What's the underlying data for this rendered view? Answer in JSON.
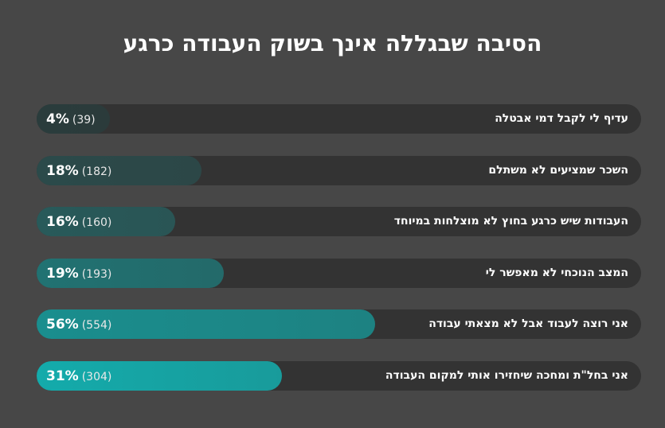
{
  "chart_data": {
    "type": "bar",
    "orientation": "horizontal",
    "title": "הסיבה שבגללה אינך בשוק העבודה כרגע",
    "categories": [
      "עדיף לי לקבל דמי אבטלה",
      "השכר שמציעים לא משתלם",
      "העבודות שיש כרגע בחוץ לא מוצלחות במיוחד",
      "המצב הנוכחי לא מאפשר לי",
      "אני רוצה לעבוד אבל לא מצאתי עבודה",
      "אני בחל\"ת ומחכה שיחזירו אותי למקום העבודה"
    ],
    "values": [
      4,
      18,
      16,
      19,
      56,
      31
    ],
    "counts": [
      39,
      182,
      160,
      193,
      554,
      304
    ],
    "value_labels": [
      "4%",
      "18%",
      "16%",
      "19%",
      "56%",
      "31%"
    ],
    "count_labels": [
      "(39)",
      "(182)",
      "(160)",
      "(193)",
      "(554)",
      "(304)"
    ],
    "colors": [
      "#2a3c3c",
      "#2b4a4a",
      "#285a5a",
      "#217272",
      "#1a8e8e",
      "#14abab"
    ],
    "track_color": "#333333",
    "background_color": "#474747"
  }
}
